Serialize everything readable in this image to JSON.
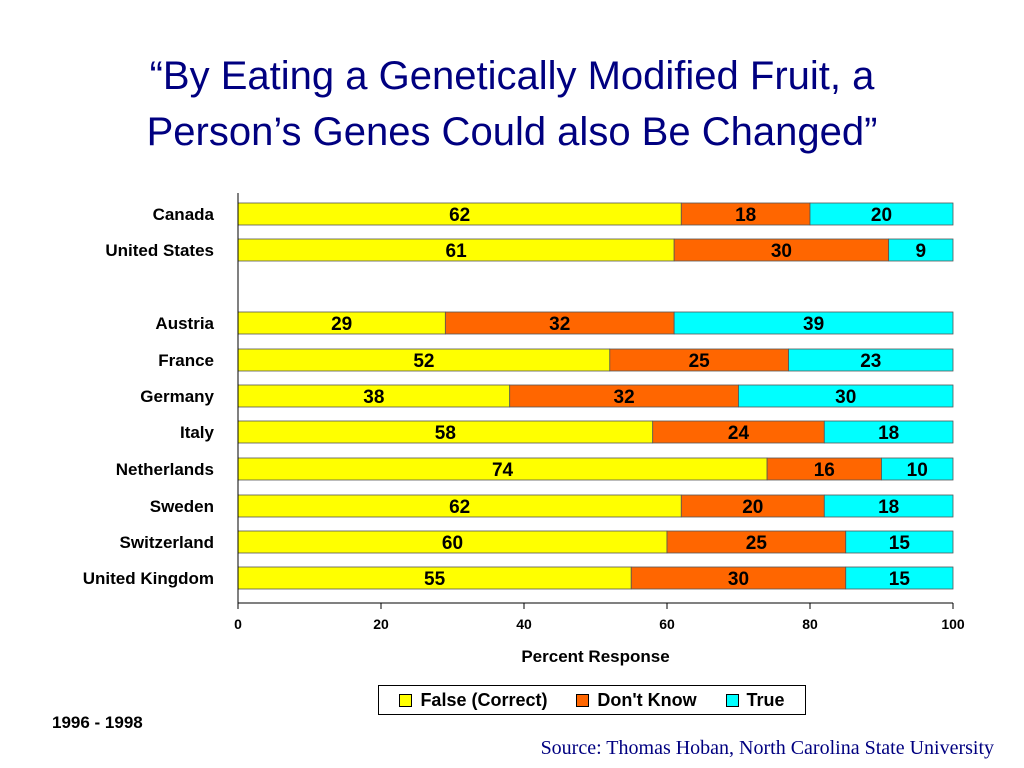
{
  "title_lines": [
    "“By Eating a Genetically Modified Fruit, a",
    "Person’s Genes Could also Be Changed”"
  ],
  "period": "1996 - 1998",
  "source": "Source: Thomas Hoban, North Carolina State University",
  "chart_data": {
    "type": "bar",
    "orientation": "horizontal",
    "stacked": true,
    "title": "“By Eating a Genetically Modified Fruit, a Person’s Genes Could also Be Changed”",
    "xlabel": "Percent Response",
    "ylabel": "",
    "xlim": [
      0,
      100
    ],
    "xticks": [
      0,
      20,
      40,
      60,
      80,
      100
    ],
    "categories": [
      "Canada",
      "United States",
      "Austria",
      "France",
      "Germany",
      "Italy",
      "Netherlands",
      "Sweden",
      "Switzerland",
      "United Kingdom"
    ],
    "series": [
      {
        "name": "False (Correct)",
        "color": "#FFFF00",
        "values": [
          62,
          61,
          29,
          52,
          38,
          58,
          74,
          62,
          60,
          55
        ]
      },
      {
        "name": "Don't Know",
        "color": "#FF6600",
        "values": [
          18,
          30,
          32,
          25,
          32,
          24,
          16,
          20,
          25,
          30
        ]
      },
      {
        "name": "True",
        "color": "#00FFFF",
        "values": [
          20,
          9,
          39,
          23,
          30,
          18,
          10,
          18,
          15,
          15
        ]
      }
    ],
    "grid": false,
    "legend": "bottom"
  }
}
